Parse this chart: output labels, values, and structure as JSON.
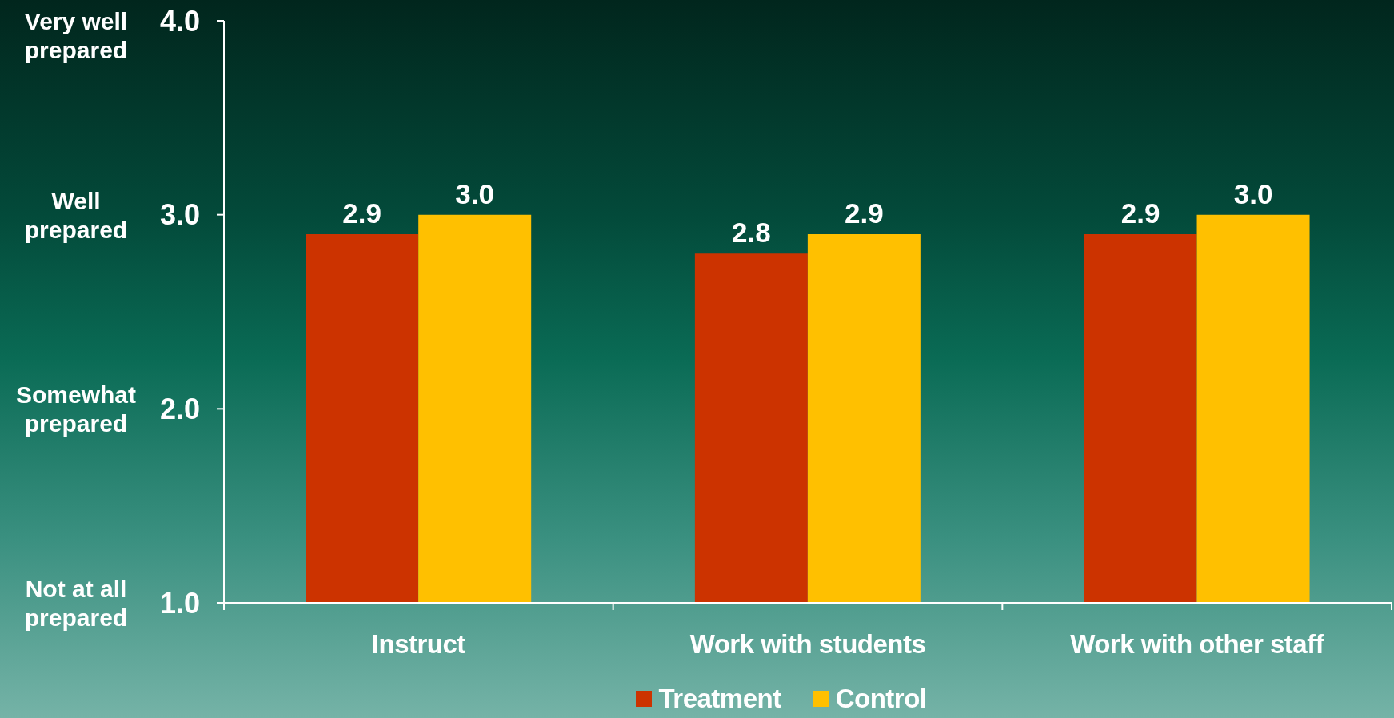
{
  "chart_data": {
    "type": "bar",
    "categories": [
      "Instruct",
      "Work with students",
      "Work with other staff"
    ],
    "series": [
      {
        "name": "Treatment",
        "color": "#cc3300",
        "values": [
          2.9,
          2.8,
          2.9
        ],
        "value_labels": [
          "2.9",
          "2.8",
          "2.9"
        ]
      },
      {
        "name": "Control",
        "color": "#ffc000",
        "values": [
          3.0,
          2.9,
          3.0
        ],
        "value_labels": [
          "3.0",
          "2.9",
          "3.0"
        ]
      }
    ],
    "ylim": [
      1,
      4
    ],
    "yticks": [
      {
        "value": 1,
        "label": "1.0"
      },
      {
        "value": 2,
        "label": "2.0"
      },
      {
        "value": 3,
        "label": "3.0"
      },
      {
        "value": 4,
        "label": "4.0"
      }
    ],
    "annotations": [
      "Not at all prepared",
      "Somewhat prepared",
      "Well prepared",
      "Very well prepared"
    ],
    "legend": "bottom"
  }
}
